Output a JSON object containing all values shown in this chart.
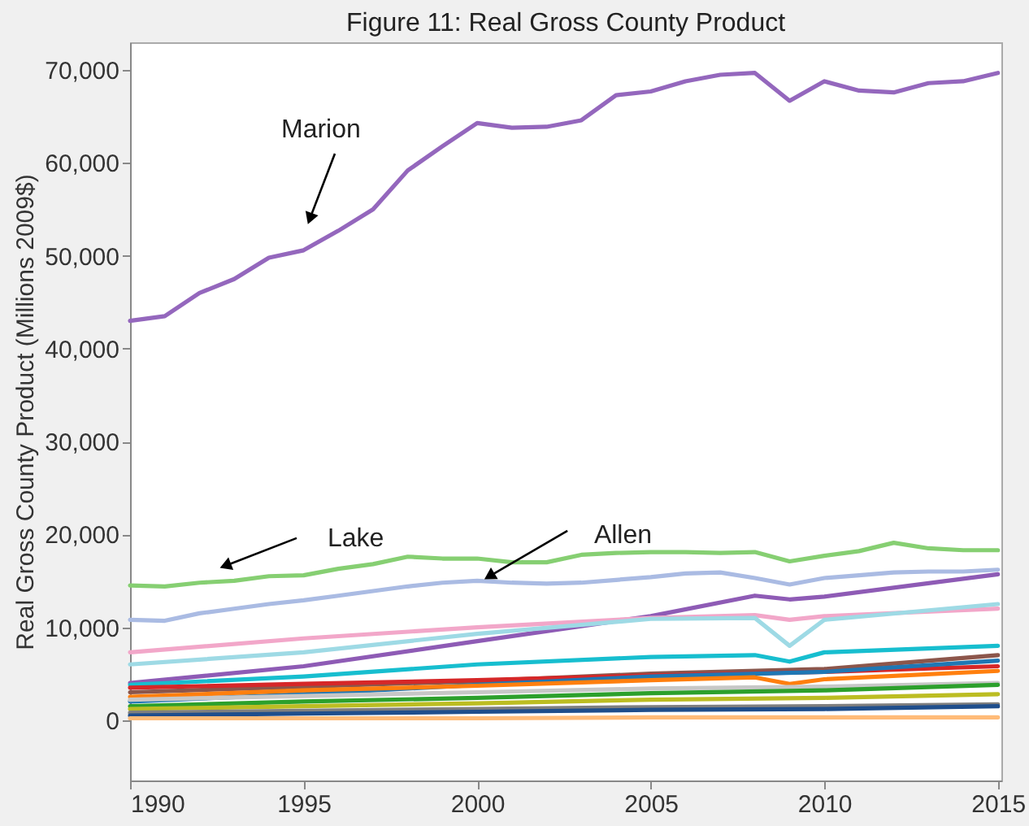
{
  "chart_data": {
    "type": "line",
    "title": "Figure 11: Real Gross County Product",
    "ylabel": "Real Gross County Product (Millions 2009$)",
    "xlim": [
      1990,
      2015.1
    ],
    "xticks": [
      1990,
      1995,
      2000,
      2005,
      2010,
      2015
    ],
    "ylim": [
      -6500,
      73000
    ],
    "yticks": [
      {
        "value": 0,
        "label": "0"
      },
      {
        "value": 10000,
        "label": "10,000"
      },
      {
        "value": 20000,
        "label": "20,000"
      },
      {
        "value": 30000,
        "label": "30,000"
      },
      {
        "value": 40000,
        "label": "40,000"
      },
      {
        "value": 50000,
        "label": "50,000"
      },
      {
        "value": 60000,
        "label": "60,000"
      },
      {
        "value": 70000,
        "label": "70,000"
      }
    ],
    "grid": false,
    "legend": false,
    "marker": "none",
    "line_style": "solid",
    "annotations": [
      {
        "text": "Marion",
        "x": 1995.2,
        "y": 54200
      },
      {
        "text": "Lake",
        "x": 1992.8,
        "y": 16700
      },
      {
        "text": "Allen",
        "x": 2000.4,
        "y": 15600
      }
    ],
    "x": [
      1990,
      1991,
      1992,
      1993,
      1994,
      1995,
      1996,
      1997,
      1998,
      1999,
      2000,
      2001,
      2002,
      2003,
      2004,
      2005,
      2006,
      2007,
      2008,
      2009,
      2010,
      2011,
      2012,
      2013,
      2014,
      2015
    ],
    "series": [
      {
        "color": "#9467bd",
        "values": [
          43000,
          43500,
          46000,
          47500,
          49800,
          50600,
          52700,
          55000,
          59200,
          61800,
          64300,
          63800,
          63900,
          64600,
          67300,
          67700,
          68800,
          69500,
          69700,
          66700,
          68800,
          67800,
          67600,
          68600,
          68800,
          69700
        ]
      },
      {
        "color": "#86cf72",
        "values": [
          14500,
          14400,
          14800,
          15000,
          15500,
          15600,
          16300,
          16800,
          17600,
          17400,
          17400,
          17000,
          17000,
          17800,
          18000,
          18100,
          18100,
          18000,
          18100,
          17100,
          17700,
          18200,
          19100,
          18500,
          18300,
          18300
        ]
      },
      {
        "color": "#aabbe3",
        "values": [
          10800,
          10700,
          11500,
          12000,
          12500,
          12900,
          13400,
          13900,
          14400,
          14800,
          15000,
          14800,
          14700,
          14800,
          15100,
          15400,
          15800,
          15900,
          15300,
          14600,
          15300,
          15600,
          15900,
          16000,
          16000,
          16200
        ]
      },
      {
        "color": "#8e5bb5",
        "x": [
          1990,
          1995,
          2000,
          2005,
          2008,
          2009,
          2010,
          2015
        ],
        "values": [
          4000,
          5800,
          8500,
          11200,
          13400,
          13000,
          13300,
          15700
        ]
      },
      {
        "color": "#f2a7c9",
        "x": [
          1990,
          1995,
          2000,
          2005,
          2008,
          2009,
          2010,
          2015
        ],
        "values": [
          7300,
          8800,
          10000,
          11000,
          11300,
          10800,
          11200,
          12000
        ]
      },
      {
        "color": "#9edae5",
        "x": [
          1990,
          1995,
          2000,
          2005,
          2008,
          2009,
          2010,
          2015
        ],
        "values": [
          6000,
          7300,
          9300,
          10900,
          11000,
          8000,
          10800,
          12500
        ]
      },
      {
        "color": "#17becf",
        "x": [
          1990,
          1995,
          2000,
          2005,
          2008,
          2009,
          2010,
          2015
        ],
        "values": [
          3800,
          4700,
          6000,
          6800,
          7000,
          6300,
          7300,
          8000
        ]
      },
      {
        "color": "#8c564b",
        "x": [
          1990,
          1995,
          2000,
          2005,
          2010,
          2015
        ],
        "values": [
          3000,
          3600,
          4200,
          5000,
          5500,
          7000
        ]
      },
      {
        "color": "#d62728",
        "x": [
          1990,
          1995,
          2000,
          2005,
          2010,
          2015
        ],
        "values": [
          3500,
          3900,
          4300,
          4800,
          5200,
          5800
        ]
      },
      {
        "color": "#1f77b4",
        "x": [
          1990,
          1995,
          2000,
          2005,
          2010,
          2015
        ],
        "values": [
          2000,
          2800,
          3800,
          4700,
          5200,
          6400
        ]
      },
      {
        "color": "#ff7f0e",
        "x": [
          1990,
          1995,
          2000,
          2005,
          2008,
          2009,
          2010,
          2015
        ],
        "values": [
          2500,
          3200,
          3700,
          4300,
          4600,
          3900,
          4400,
          5300
        ]
      },
      {
        "color": "#c7c7c7",
        "x": [
          1990,
          1995,
          2000,
          2005,
          2010,
          2015
        ],
        "values": [
          2200,
          2600,
          3000,
          3400,
          3600,
          4000
        ]
      },
      {
        "color": "#2ca02c",
        "x": [
          1990,
          1995,
          2000,
          2005,
          2010,
          2015
        ],
        "values": [
          1500,
          2000,
          2400,
          2900,
          3200,
          3800
        ]
      },
      {
        "color": "#bcbd22",
        "x": [
          1990,
          1995,
          2000,
          2005,
          2010,
          2015
        ],
        "values": [
          1200,
          1500,
          1800,
          2200,
          2400,
          2800
        ]
      },
      {
        "color": "#7f7f7f",
        "x": [
          1990,
          1995,
          2000,
          2005,
          2010,
          2015
        ],
        "values": [
          800,
          1000,
          1200,
          1400,
          1500,
          1700
        ]
      },
      {
        "color": "#1f4e8c",
        "x": [
          1990,
          1995,
          2000,
          2005,
          2010,
          2015
        ],
        "values": [
          500,
          700,
          900,
          1100,
          1200,
          1500
        ]
      },
      {
        "color": "#ffbb78",
        "x": [
          1990,
          1995,
          2000,
          2005,
          2010,
          2015
        ],
        "values": [
          200,
          200,
          200,
          300,
          300,
          300
        ]
      }
    ]
  }
}
